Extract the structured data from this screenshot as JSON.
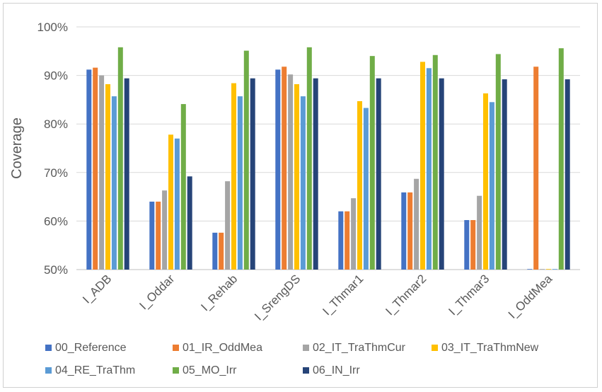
{
  "chart_data": {
    "type": "bar",
    "title": "",
    "xlabel": "",
    "ylabel": "Coverage",
    "ylim": [
      0.5,
      1.0
    ],
    "yticks": [
      0.5,
      0.6,
      0.7,
      0.8,
      0.9,
      1.0
    ],
    "ytick_labels": [
      "50%",
      "60%",
      "70%",
      "80%",
      "90%",
      "100%"
    ],
    "grid": true,
    "legend_position": "bottom",
    "categories": [
      "I_ADB",
      "I_Oddar",
      "I_Rehab",
      "I_SrengDS",
      "I_Thmar1",
      "I_Thmar2",
      "I_Thmar3",
      "I_OddMea"
    ],
    "series": [
      {
        "name": "00_Reference",
        "color": "#4472C4",
        "values": [
          0.912,
          0.64,
          0.576,
          0.912,
          0.62,
          0.659,
          0.602,
          0.501
        ]
      },
      {
        "name": "01_IR_OddMea",
        "color": "#ED7D31",
        "values": [
          0.916,
          0.64,
          0.576,
          0.918,
          0.62,
          0.659,
          0.602,
          0.918
        ]
      },
      {
        "name": "02_IT_TraThmCur",
        "color": "#A5A5A5",
        "values": [
          0.9,
          0.663,
          0.682,
          0.902,
          0.647,
          0.687,
          0.652,
          0.501
        ]
      },
      {
        "name": "03_IT_TraThmNew",
        "color": "#FFC000",
        "values": [
          0.882,
          0.778,
          0.884,
          0.882,
          0.847,
          0.928,
          0.863,
          0.501
        ]
      },
      {
        "name": "04_RE_TraThm",
        "color": "#5B9BD5",
        "values": [
          0.857,
          0.77,
          0.857,
          0.857,
          0.833,
          0.915,
          0.845,
          0.501
        ]
      },
      {
        "name": "05_MO_Irr",
        "color": "#70AD47",
        "values": [
          0.958,
          0.841,
          0.951,
          0.958,
          0.94,
          0.942,
          0.944,
          0.956
        ]
      },
      {
        "name": "06_IN_Irr",
        "color": "#264478",
        "values": [
          0.894,
          0.692,
          0.894,
          0.894,
          0.894,
          0.894,
          0.892,
          0.892
        ]
      }
    ]
  }
}
